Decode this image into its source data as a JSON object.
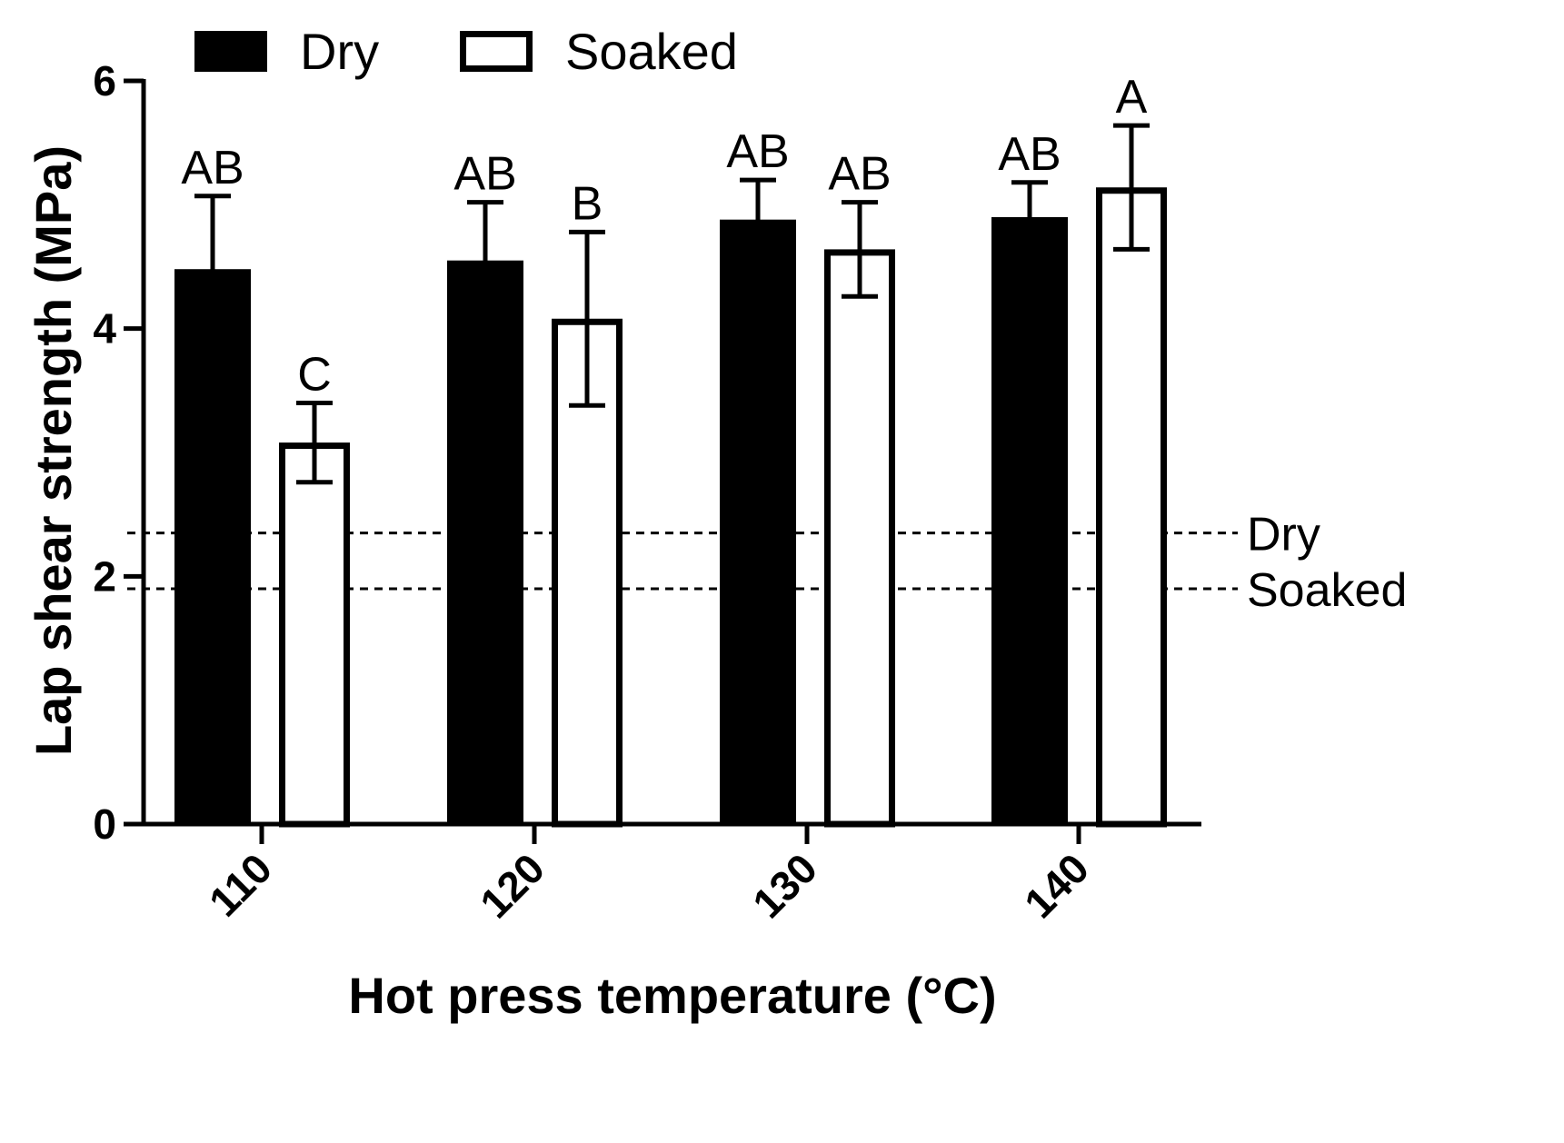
{
  "chart_data": {
    "type": "bar",
    "xlabel": "Hot press temperature (°C)",
    "ylabel": "Lap shear strength (MPa)",
    "ylim": [
      0,
      6
    ],
    "yticks": [
      0,
      2,
      4,
      6
    ],
    "categories": [
      "110",
      "120",
      "130",
      "140"
    ],
    "series": [
      {
        "name": "Dry",
        "fill": "#000000",
        "values": [
          4.48,
          4.55,
          4.88,
          4.9
        ],
        "errors": [
          0.59,
          0.47,
          0.32,
          0.28
        ],
        "labels": [
          "AB",
          "AB",
          "AB",
          "AB"
        ]
      },
      {
        "name": "Soaked",
        "fill": "#ffffff",
        "values": [
          3.08,
          4.08,
          4.64,
          5.14
        ],
        "errors": [
          0.32,
          0.7,
          0.38,
          0.5
        ],
        "labels": [
          "C",
          "B",
          "AB",
          "A"
        ]
      }
    ],
    "reference_lines": [
      {
        "label": "Dry",
        "value": 2.35,
        "style": "dashed"
      },
      {
        "label": "Soaked",
        "value": 1.9,
        "style": "dashed"
      }
    ],
    "legend": {
      "position": "top-left",
      "entries": [
        "Dry",
        "Soaked"
      ]
    },
    "grid": false
  }
}
